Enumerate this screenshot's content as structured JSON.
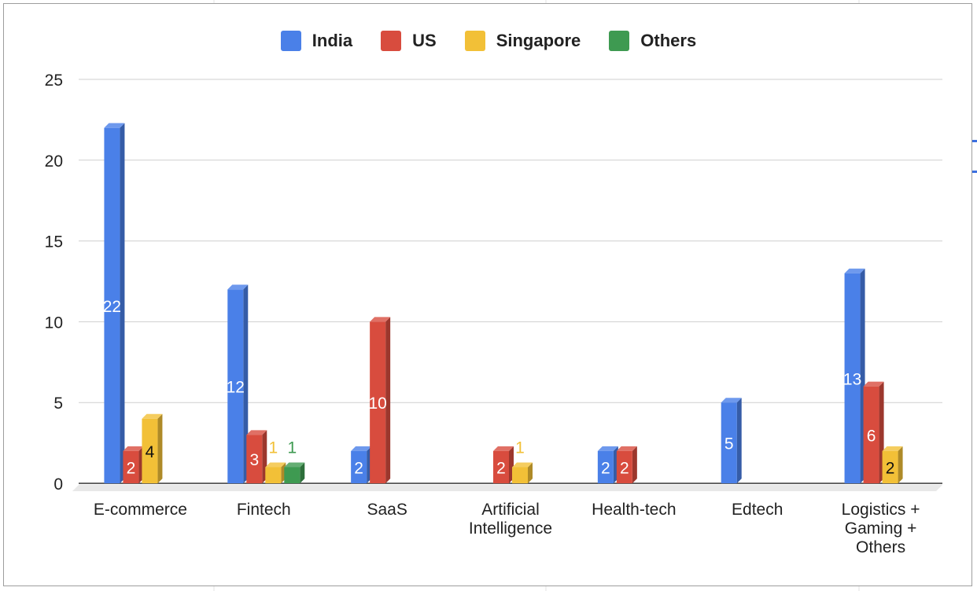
{
  "chart_data": {
    "type": "bar",
    "style": "3d",
    "categories": [
      "E-commerce",
      "Fintech",
      "SaaS",
      "Artificial Intelligence",
      "Health-tech",
      "Edtech",
      "Logistics + Gaming + Others"
    ],
    "category_lines": [
      [
        "E-commerce"
      ],
      [
        "Fintech"
      ],
      [
        "SaaS"
      ],
      [
        "Artificial",
        "Intelligence"
      ],
      [
        "Health-tech"
      ],
      [
        "Edtech"
      ],
      [
        "Logistics +",
        "Gaming +",
        "Others"
      ]
    ],
    "series": [
      {
        "name": "India",
        "color": "#4a80e8",
        "values": [
          22,
          12,
          2,
          null,
          2,
          5,
          13
        ]
      },
      {
        "name": "US",
        "color": "#d84c3e",
        "values": [
          2,
          3,
          10,
          2,
          2,
          null,
          6
        ]
      },
      {
        "name": "Singapore",
        "color": "#f2c037",
        "values": [
          4,
          1,
          null,
          1,
          null,
          null,
          2
        ]
      },
      {
        "name": "Others",
        "color": "#3e9a51",
        "values": [
          null,
          1,
          null,
          null,
          null,
          null,
          null
        ]
      }
    ],
    "ylim": [
      0,
      25
    ],
    "yticks": [
      0,
      5,
      10,
      15,
      20,
      25
    ],
    "grid": true,
    "legend_position": "top",
    "title": "",
    "xlabel": "",
    "ylabel": ""
  }
}
